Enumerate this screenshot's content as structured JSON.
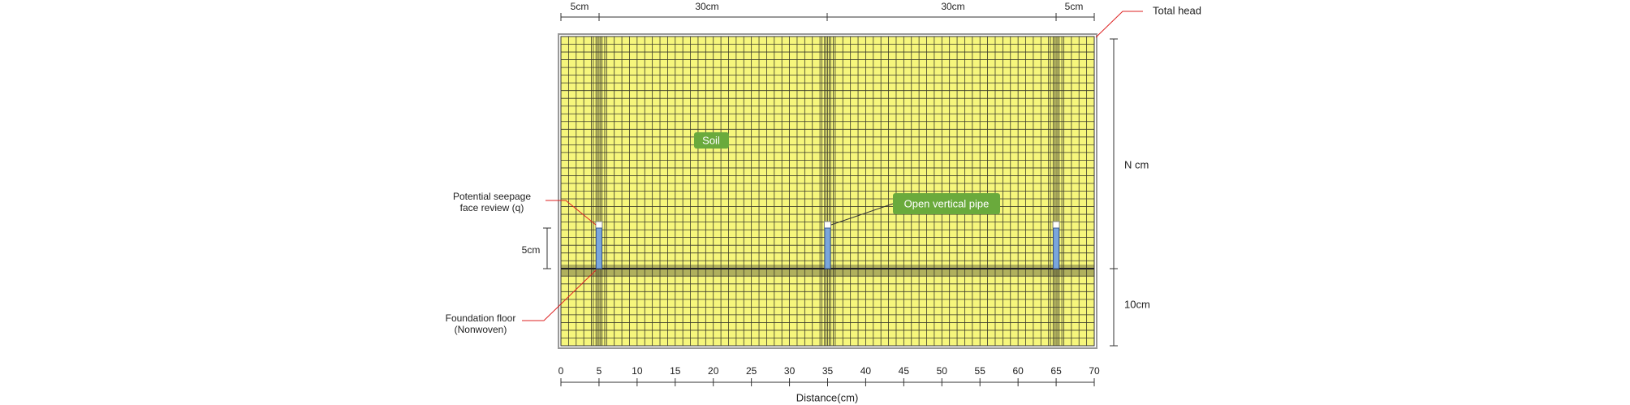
{
  "labels": {
    "total_head": "Total head",
    "n_depth": "N cm",
    "lower_depth": "10cm",
    "soil": "Soil",
    "pipe": "Open vertical pipe",
    "seepage_line1": "Potential seepage",
    "seepage_line2": "face review (q)",
    "pipe_height": "5cm",
    "floor_line1": "Foundation floor",
    "floor_line2": "(Nonwoven)"
  },
  "top_dimensions": [
    "5cm",
    "30cm",
    "30cm",
    "5cm"
  ],
  "axis": {
    "label": "Distance(cm)",
    "xlim": [
      0,
      70
    ],
    "xticks": [
      0,
      5,
      10,
      15,
      20,
      25,
      30,
      35,
      40,
      45,
      50,
      55,
      60,
      65,
      70
    ]
  }
}
